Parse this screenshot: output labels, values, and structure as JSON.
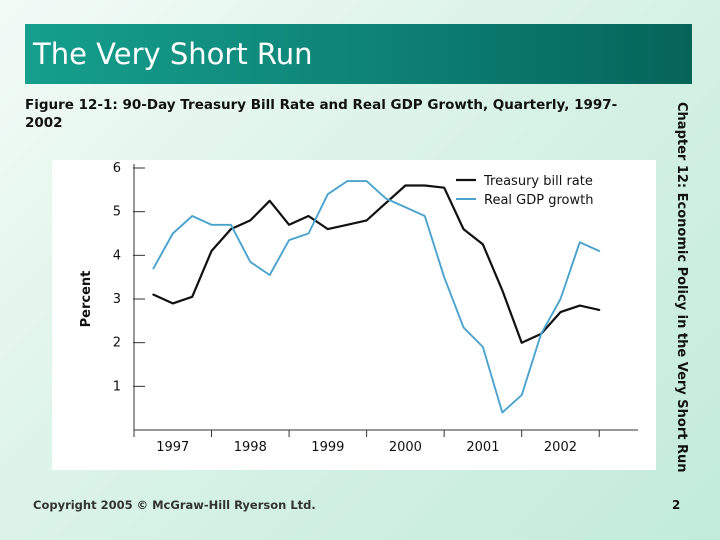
{
  "slide": {
    "title": "The Very Short Run",
    "caption": "Figure 12-1: 90-Day Treasury Bill Rate and Real GDP Growth, Quarterly, 1997-2002",
    "side_text": "Chapter 12: Economic Policy in the Very Short Run",
    "footer": "Copyright 2005 © McGraw-Hill Ryerson Ltd.",
    "page_number": "2"
  },
  "colors": {
    "title_bar": "#0d8174",
    "treasury_line": "#111111",
    "gdp_line": "#4aa3cc"
  },
  "chart_data": {
    "type": "line",
    "title": "",
    "xlabel": "",
    "ylabel": "Percent",
    "xlim": [
      1996.5,
      2003.0
    ],
    "ylim": [
      0,
      6
    ],
    "grid": false,
    "legend_position": "top-right",
    "y_ticks": [
      1,
      2,
      3,
      4,
      5,
      6
    ],
    "x_tick_labels": [
      "1997",
      "1998",
      "1999",
      "2000",
      "2001",
      "2002"
    ],
    "x_tick_values": [
      1997,
      1998,
      1999,
      2000,
      2001,
      2002
    ],
    "series": [
      {
        "name": "Treasury bill rate",
        "x": [
          1996.75,
          1997.0,
          1997.25,
          1997.5,
          1997.75,
          1998.0,
          1998.25,
          1998.5,
          1998.75,
          1999.0,
          1999.25,
          1999.5,
          1999.75,
          2000.0,
          2000.25,
          2000.5,
          2000.75,
          2001.0,
          2001.25,
          2001.5,
          2001.75,
          2002.0,
          2002.25,
          2002.5
        ],
        "y": [
          3.1,
          2.9,
          3.05,
          4.1,
          4.6,
          4.8,
          5.25,
          4.7,
          4.9,
          4.6,
          4.7,
          4.8,
          5.2,
          5.6,
          5.6,
          5.55,
          4.6,
          4.25,
          3.2,
          2.0,
          2.2,
          2.7,
          2.85,
          2.75
        ]
      },
      {
        "name": "Real GDP growth",
        "x": [
          1996.75,
          1997.0,
          1997.25,
          1997.5,
          1997.75,
          1998.0,
          1998.25,
          1998.5,
          1998.75,
          1999.0,
          1999.25,
          1999.5,
          1999.75,
          2000.0,
          2000.25,
          2000.5,
          2000.75,
          2001.0,
          2001.25,
          2001.5,
          2001.75,
          2002.0,
          2002.25,
          2002.5
        ],
        "y": [
          3.7,
          4.5,
          4.9,
          4.7,
          4.7,
          3.85,
          3.55,
          4.35,
          4.5,
          5.4,
          5.7,
          5.7,
          5.3,
          5.1,
          4.9,
          3.5,
          2.35,
          1.9,
          0.4,
          0.8,
          2.2,
          3.0,
          4.3,
          4.1
        ]
      }
    ]
  }
}
